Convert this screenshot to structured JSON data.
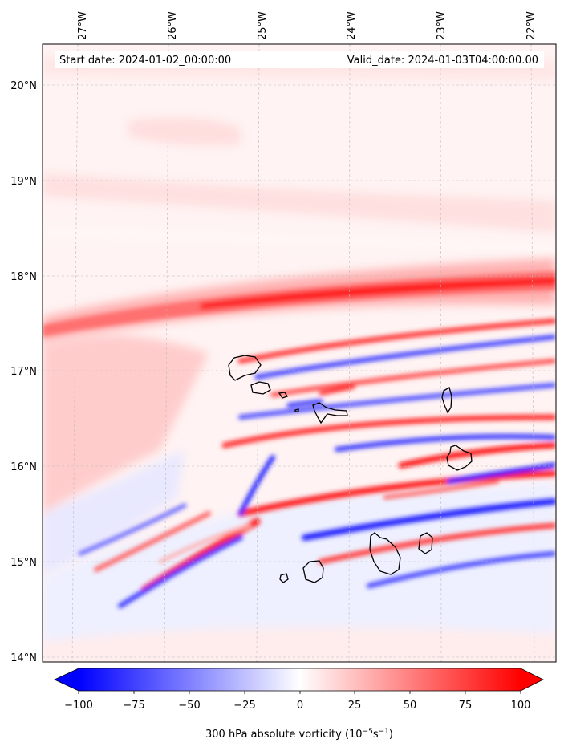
{
  "map": {
    "start_label": "Start date: 2024-01-02_00:00:00",
    "valid_label": "Valid_date: 2024-01-03T04:00:00.00",
    "lon_labels": [
      "27°W",
      "26°W",
      "25°W",
      "24°W",
      "23°W",
      "22°W"
    ],
    "lat_labels": [
      "20°N",
      "19°N",
      "18°N",
      "17°N",
      "16°N",
      "15°N",
      "14°N"
    ],
    "colorbar": {
      "title": "300 hPa absolute vorticity (10",
      "exp1": "−5",
      "mid": "s",
      "exp2": "−1",
      "close": ")",
      "ticks": [
        "−100",
        "−75",
        "−50",
        "−25",
        "0",
        "25",
        "50",
        "75",
        "100"
      ],
      "min": -100,
      "max": 100,
      "low_color": "#0000ff",
      "mid_color": "#ffffff",
      "high_color": "#ff0000"
    }
  }
}
